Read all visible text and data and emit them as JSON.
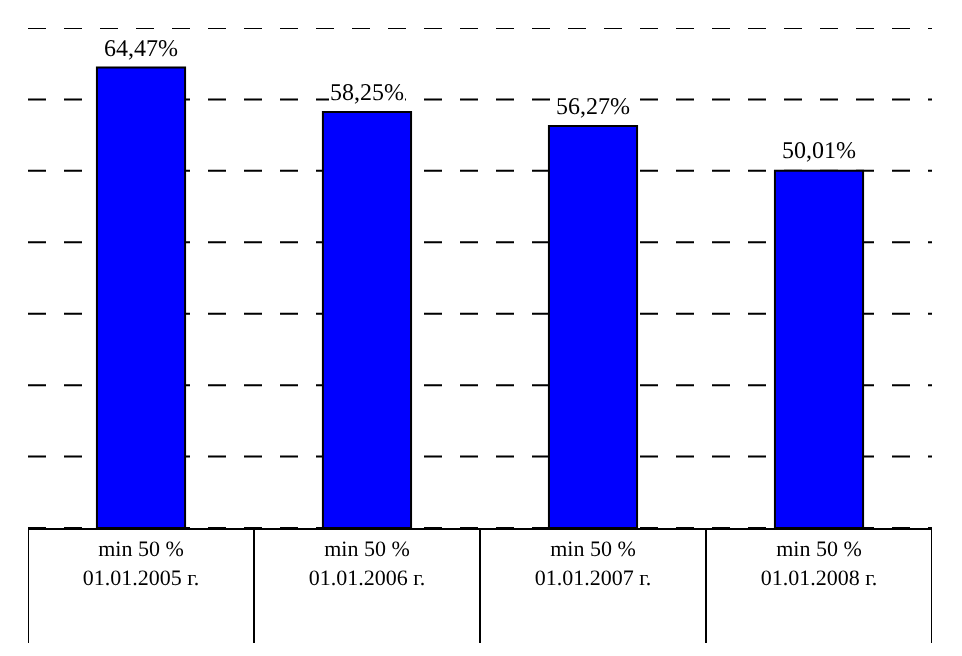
{
  "chart_data": {
    "type": "bar",
    "categories": [
      "min 50 %\n01.01.2005 г.",
      "min 50 %\n01.01.2006 г.",
      "min 50 %\n01.01.2007 г.",
      "min 50 %\n01.01.2008 г."
    ],
    "values": [
      64.47,
      58.25,
      56.27,
      50.01
    ],
    "value_labels": [
      "64,47%",
      "58,25%",
      "56,27%",
      "50,01%"
    ],
    "color": "#0000ff",
    "ylim": [
      0,
      70
    ],
    "yticks": [
      {
        "value": 0,
        "label": null
      },
      {
        "value": 10,
        "label": null
      },
      {
        "value": 20,
        "label": null
      },
      {
        "value": 30,
        "label": null
      },
      {
        "value": 40,
        "label": null
      },
      {
        "value": 50,
        "label": null
      },
      {
        "value": 60,
        "label": null
      },
      {
        "value": 70,
        "label": null
      }
    ],
    "grid": "y",
    "tick_labels": "x",
    "legend": false
  }
}
